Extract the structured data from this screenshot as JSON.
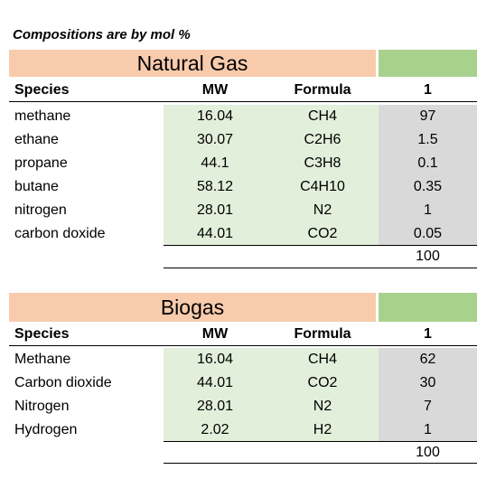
{
  "note": "Compositions are by mol %",
  "tables": [
    {
      "title": "Natural Gas",
      "headers": [
        "Species",
        "MW",
        "Formula",
        "1"
      ],
      "rows": [
        {
          "species": "methane",
          "mw": "16.04",
          "formula": "CH4",
          "value": "97"
        },
        {
          "species": "ethane",
          "mw": "30.07",
          "formula": "C2H6",
          "value": "1.5"
        },
        {
          "species": "propane",
          "mw": "44.1",
          "formula": "C3H8",
          "value": "0.1"
        },
        {
          "species": "butane",
          "mw": "58.12",
          "formula": "C4H10",
          "value": "0.35"
        },
        {
          "species": "nitrogen",
          "mw": "28.01",
          "formula": "N2",
          "value": "1"
        },
        {
          "species": "carbon doxide",
          "mw": "44.01",
          "formula": "CO2",
          "value": "0.05"
        }
      ],
      "total": "100"
    },
    {
      "title": "Biogas",
      "headers": [
        "Species",
        "MW",
        "Formula",
        "1"
      ],
      "rows": [
        {
          "species": "Methane",
          "mw": "16.04",
          "formula": "CH4",
          "value": "62"
        },
        {
          "species": "Carbon dioxide",
          "mw": "44.01",
          "formula": "CO2",
          "value": "30"
        },
        {
          "species": "Nitrogen",
          "mw": "28.01",
          "formula": "N2",
          "value": "7"
        },
        {
          "species": "Hydrogen",
          "mw": "2.02",
          "formula": "H2",
          "value": "1"
        }
      ],
      "total": "100"
    }
  ],
  "colors": {
    "title_fill": "#f8cbad",
    "header_green": "#a9d18e",
    "data_green": "#e2efda",
    "data_gray": "#d9d9d9"
  }
}
